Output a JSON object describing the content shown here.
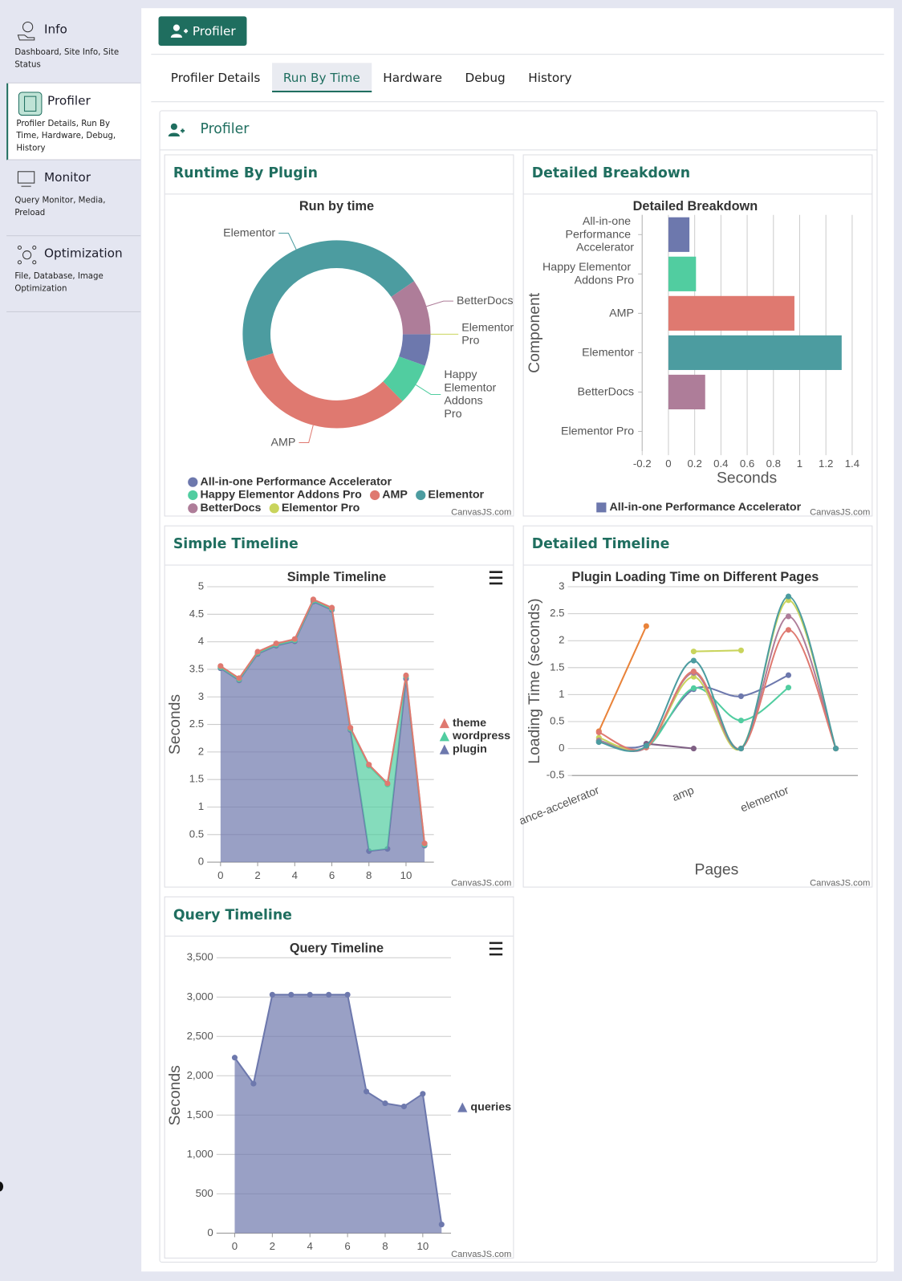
{
  "sidebar": {
    "active": 1,
    "items": [
      {
        "title": "Info",
        "subtitle": "Dashboard, Site Info, Site Status"
      },
      {
        "title": "Profiler",
        "subtitle": "Profiler Details, Run By Time, Hardware, Debug, History"
      },
      {
        "title": "Monitor",
        "subtitle": "Query Monitor, Media, Preload"
      },
      {
        "title": "Optimization",
        "subtitle": "File, Database, Image Optimization"
      }
    ]
  },
  "header": {
    "button": "Profiler"
  },
  "tabs": {
    "active": 1,
    "items": [
      "Profiler Details",
      "Run By Time",
      "Hardware",
      "Debug",
      "History"
    ]
  },
  "panel": {
    "title": "Profiler"
  },
  "chart_data": [
    {
      "heading": "Runtime By Plugin",
      "type": "doughnut",
      "title": "Run by time",
      "categories": [
        "All-in-one Performance Accelerator",
        "Happy Elementor Addons Pro",
        "AMP",
        "Elementor",
        "BetterDocs",
        "Elementor Pro"
      ],
      "values": [
        0.16,
        0.21,
        0.96,
        1.32,
        0.28,
        0
      ],
      "colors": [
        "#6d78ad",
        "#51cda0",
        "#df7970",
        "#4c9ca0",
        "#ae7d99",
        "#c9d45c"
      ],
      "credit": "CanvasJS.com"
    },
    {
      "heading": "Detailed Breakdown",
      "type": "bar",
      "title": "Detailed Breakdown",
      "categories": [
        "All-in-one Performance Accelerator",
        "Happy Elementor Addons Pro",
        "AMP",
        "Elementor",
        "BetterDocs",
        "Elementor Pro"
      ],
      "series": [
        {
          "name": "All-in-one Performance Accelerator",
          "values": [
            0.16,
            0.21,
            0.96,
            1.32,
            0.28,
            0
          ],
          "colors": [
            "#6d78ad",
            "#51cda0",
            "#df7970",
            "#4c9ca0",
            "#ae7d99",
            "#c9d45c"
          ]
        }
      ],
      "xlabel": "Seconds",
      "ylabel": "Component",
      "xlim": [
        -0.2,
        1.4
      ],
      "xticks": [
        -0.2,
        0,
        0.2,
        0.4,
        0.6,
        0.8,
        1,
        1.2,
        1.4
      ],
      "grid": true,
      "credit": "CanvasJS.com"
    },
    {
      "heading": "Simple Timeline",
      "type": "stacked_area",
      "title": "Simple Timeline",
      "x": [
        0,
        1,
        2,
        3,
        4,
        5,
        6,
        7,
        8,
        9,
        10,
        11
      ],
      "series": [
        {
          "name": "plugin",
          "color": "#6d78ad",
          "values": [
            3.52,
            3.3,
            3.78,
            3.93,
            4.01,
            4.73,
            4.58,
            2.4,
            0.2,
            0.24,
            3.33,
            0.3
          ]
        },
        {
          "name": "wordpress",
          "color": "#51cda0",
          "values": [
            0.02,
            0.02,
            0.02,
            0.02,
            0.02,
            0.02,
            0.02,
            0.02,
            1.55,
            1.17,
            0.04,
            0.02
          ]
        },
        {
          "name": "theme",
          "color": "#df7970",
          "values": [
            0.02,
            0.02,
            0.02,
            0.02,
            0.02,
            0.02,
            0.02,
            0.02,
            0.02,
            0.02,
            0.02,
            0.02
          ]
        }
      ],
      "ylabel": "Seconds",
      "xlim": [
        -0.5,
        11.5
      ],
      "xticks": [
        0,
        2,
        4,
        6,
        8,
        10
      ],
      "ylim": [
        0,
        5
      ],
      "yticks": [
        0,
        0.5,
        1,
        1.5,
        2,
        2.5,
        3,
        3.5,
        4,
        4.5,
        5
      ],
      "grid": true,
      "menu": true,
      "credit": "CanvasJS.com"
    },
    {
      "heading": "Detailed Timeline",
      "type": "spline",
      "title": "Plugin Loading Time on Different Pages",
      "categories": [
        "ance-accelerator",
        null,
        "amp",
        null,
        "elementor",
        null
      ],
      "series": [
        {
          "color": "#6d78ad",
          "values": [
            0.12,
            0.08,
            1.1,
            0.97,
            1.36,
            null
          ]
        },
        {
          "color": "#51cda0",
          "values": [
            0.15,
            0.02,
            1.12,
            0.52,
            1.13,
            null
          ]
        },
        {
          "color": "#e9833a",
          "values": [
            0.32,
            2.27,
            null,
            null,
            null,
            null
          ]
        },
        {
          "color": "#7f6084",
          "values": [
            null,
            0.09,
            0,
            null,
            null,
            null
          ]
        },
        {
          "color": "#c9d45c",
          "values": [
            null,
            null,
            1.8,
            1.82,
            null,
            null
          ]
        },
        {
          "color": "#c9d45c",
          "values": [
            0.2,
            0.02,
            1.33,
            0,
            2.75,
            0
          ]
        },
        {
          "color": "#ae7d99",
          "values": [
            0.15,
            0.02,
            1.4,
            0,
            2.45,
            0
          ]
        },
        {
          "color": "#df7970",
          "values": [
            0.3,
            0.02,
            1.43,
            0,
            2.2,
            0
          ]
        },
        {
          "color": "#4c9ca0",
          "values": [
            0.12,
            0.05,
            1.63,
            0,
            2.82,
            0
          ]
        }
      ],
      "xlabel": "Pages",
      "ylabel": "Loading Time (seconds)",
      "ylim": [
        -0.5,
        3
      ],
      "yticks": [
        -0.5,
        0,
        0.5,
        1,
        1.5,
        2,
        2.5,
        3
      ],
      "grid": true,
      "credit": "CanvasJS.com"
    },
    {
      "heading": "Query Timeline",
      "type": "area",
      "title": "Query Timeline",
      "x": [
        0,
        1,
        2,
        3,
        4,
        5,
        6,
        7,
        8,
        9,
        10,
        11
      ],
      "series": [
        {
          "name": "queries",
          "color": "#6d78ad",
          "values": [
            2230,
            1900,
            3030,
            3030,
            3030,
            3030,
            3030,
            1800,
            1650,
            1610,
            1770,
            110
          ]
        }
      ],
      "ylabel": "Seconds",
      "xlim": [
        -0.75,
        11.5
      ],
      "xticks": [
        0,
        2,
        4,
        6,
        8,
        10
      ],
      "ylim": [
        0,
        3500
      ],
      "yticks": [
        0,
        500,
        {
          "value": 1000,
          "label": "1,000"
        },
        {
          "value": 1500,
          "label": "1,500"
        },
        {
          "value": 2000,
          "label": "2,000"
        },
        {
          "value": 2500,
          "label": "2,500"
        },
        {
          "value": 3000,
          "label": "3,000"
        },
        {
          "value": 3500,
          "label": "3,500"
        }
      ],
      "grid": true,
      "menu": true,
      "credit": "CanvasJS.com"
    }
  ]
}
